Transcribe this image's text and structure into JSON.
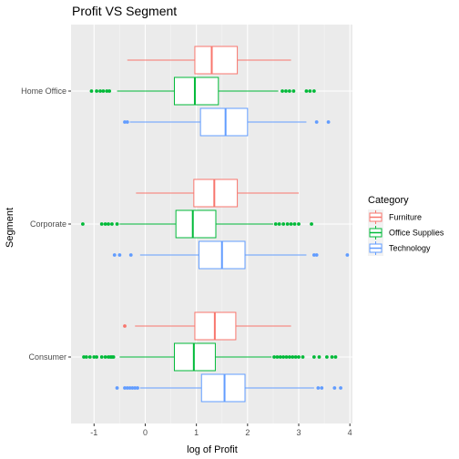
{
  "chart_data": {
    "type": "boxplot",
    "title": "Profit VS Segment",
    "xlabel": "log of Profit",
    "ylabel": "Segment",
    "xlim": [
      -1.45,
      4.05
    ],
    "xticks": [
      -1,
      0,
      1,
      2,
      3,
      4
    ],
    "categories": [
      "Consumer",
      "Corporate",
      "Home Office"
    ],
    "legend": {
      "title": "Category",
      "position": "right",
      "entries": [
        {
          "name": "Furniture",
          "color": "#F8766D"
        },
        {
          "name": "Office Supplies",
          "color": "#00BA38"
        },
        {
          "name": "Technology",
          "color": "#619CFF"
        }
      ]
    },
    "grid": true,
    "series": [
      {
        "name": "Furniture",
        "color": "#F8766D",
        "boxes": [
          {
            "segment": "Consumer",
            "whisker_low": -0.2,
            "q1": 0.97,
            "median": 1.36,
            "q3": 1.77,
            "whisker_high": 2.85,
            "outliers": [
              -0.4
            ]
          },
          {
            "segment": "Corporate",
            "whisker_low": -0.18,
            "q1": 0.95,
            "median": 1.35,
            "q3": 1.8,
            "whisker_high": 3.0,
            "outliers": []
          },
          {
            "segment": "Home Office",
            "whisker_low": -0.35,
            "q1": 0.97,
            "median": 1.3,
            "q3": 1.8,
            "whisker_high": 2.85,
            "outliers": []
          }
        ]
      },
      {
        "name": "Office Supplies",
        "color": "#00BA38",
        "boxes": [
          {
            "segment": "Consumer",
            "whisker_low": -0.5,
            "q1": 0.57,
            "median": 0.95,
            "q3": 1.37,
            "whisker_high": 2.47,
            "outliers": [
              -1.2,
              -1.15,
              -1.08,
              -1.0,
              -0.95,
              -0.85,
              -0.78,
              -0.72,
              -0.68,
              -0.65,
              -0.62,
              2.52,
              2.58,
              2.64,
              2.7,
              2.76,
              2.82,
              2.88,
              2.94,
              3.0,
              3.08,
              3.3,
              3.4,
              3.55,
              3.65,
              3.72
            ]
          },
          {
            "segment": "Corporate",
            "whisker_low": -0.5,
            "q1": 0.6,
            "median": 0.93,
            "q3": 1.38,
            "whisker_high": 2.5,
            "outliers": [
              -1.22,
              -0.85,
              -0.78,
              -0.72,
              -0.65,
              -0.55,
              2.55,
              2.62,
              2.7,
              2.78,
              2.85,
              2.92,
              3.0,
              3.25
            ]
          },
          {
            "segment": "Home Office",
            "whisker_low": -0.55,
            "q1": 0.57,
            "median": 0.97,
            "q3": 1.43,
            "whisker_high": 2.6,
            "outliers": [
              -1.05,
              -0.95,
              -0.88,
              -0.82,
              -0.75,
              -0.7,
              2.68,
              2.75,
              2.82,
              2.9,
              3.15,
              3.22,
              3.3
            ]
          }
        ]
      },
      {
        "name": "Technology",
        "color": "#619CFF",
        "boxes": [
          {
            "segment": "Consumer",
            "whisker_low": -0.1,
            "q1": 1.1,
            "median": 1.55,
            "q3": 1.95,
            "whisker_high": 3.3,
            "outliers": [
              -0.55,
              -0.4,
              -0.35,
              -0.3,
              -0.25,
              -0.2,
              -0.15,
              3.38,
              3.45,
              3.7,
              3.82
            ]
          },
          {
            "segment": "Corporate",
            "whisker_low": -0.1,
            "q1": 1.05,
            "median": 1.5,
            "q3": 1.95,
            "whisker_high": 3.15,
            "outliers": [
              -0.6,
              -0.5,
              -0.28,
              3.3,
              3.35,
              3.95
            ]
          },
          {
            "segment": "Home Office",
            "whisker_low": -0.3,
            "q1": 1.08,
            "median": 1.57,
            "q3": 2.0,
            "whisker_high": 3.15,
            "outliers": [
              -0.4,
              -0.35,
              3.35,
              3.58
            ]
          }
        ]
      }
    ]
  }
}
